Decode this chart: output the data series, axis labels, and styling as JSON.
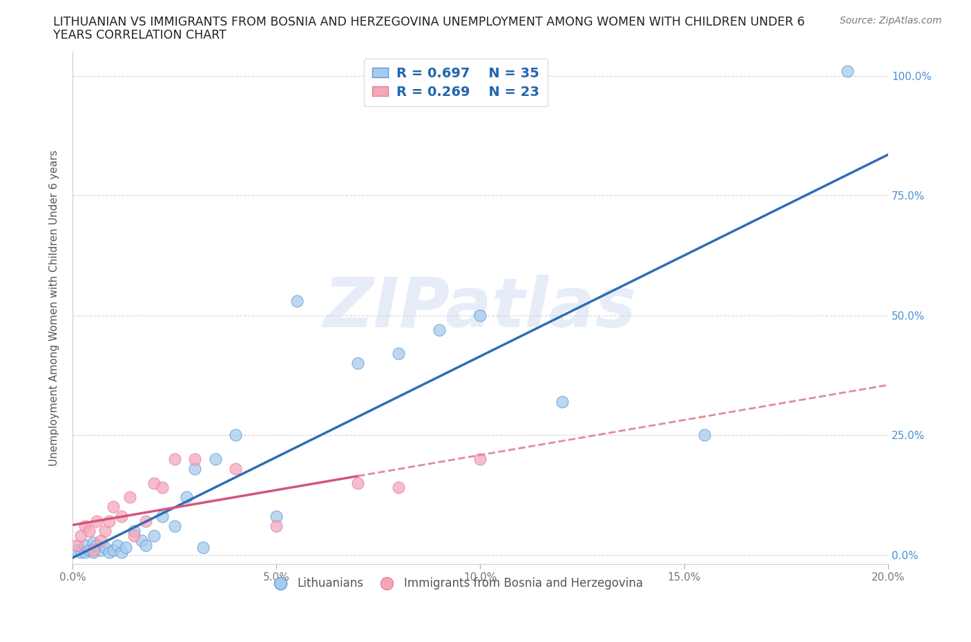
{
  "title_line1": "LITHUANIAN VS IMMIGRANTS FROM BOSNIA AND HERZEGOVINA UNEMPLOYMENT AMONG WOMEN WITH CHILDREN UNDER 6",
  "title_line2": "YEARS CORRELATION CHART",
  "source": "Source: ZipAtlas.com",
  "ylabel": "Unemployment Among Women with Children Under 6 years",
  "xlim": [
    0.0,
    0.2
  ],
  "ylim": [
    -0.02,
    1.05
  ],
  "xticks": [
    0.0,
    0.05,
    0.1,
    0.15,
    0.2
  ],
  "xticklabels": [
    "0.0%",
    "5.0%",
    "10.0%",
    "15.0%",
    "20.0%"
  ],
  "yticks": [
    0.0,
    0.25,
    0.5,
    0.75,
    1.0
  ],
  "yticklabels_right": [
    "0.0%",
    "25.0%",
    "50.0%",
    "75.0%",
    "100.0%"
  ],
  "blue_color": "#a8caed",
  "blue_edge_color": "#5b9bd5",
  "pink_color": "#f4a7b9",
  "pink_edge_color": "#e87ca0",
  "blue_line_color": "#2f6db5",
  "pink_line_solid_color": "#d4547a",
  "pink_line_dash_color": "#e08aa0",
  "legend_R_blue": "R = 0.697",
  "legend_N_blue": "N = 35",
  "legend_R_pink": "R = 0.269",
  "legend_N_pink": "N = 23",
  "legend_label_blue": "Lithuanians",
  "legend_label_pink": "Immigrants from Bosnia and Herzegovina",
  "watermark": "ZIPatlas",
  "blue_scatter_x": [
    0.001,
    0.002,
    0.003,
    0.003,
    0.004,
    0.005,
    0.005,
    0.006,
    0.007,
    0.008,
    0.009,
    0.01,
    0.011,
    0.012,
    0.013,
    0.015,
    0.017,
    0.018,
    0.02,
    0.022,
    0.025,
    0.028,
    0.03,
    0.032,
    0.035,
    0.04,
    0.05,
    0.055,
    0.07,
    0.08,
    0.09,
    0.1,
    0.12,
    0.155,
    0.19
  ],
  "blue_scatter_y": [
    0.01,
    0.005,
    0.005,
    0.02,
    0.01,
    0.005,
    0.025,
    0.02,
    0.01,
    0.015,
    0.005,
    0.01,
    0.02,
    0.005,
    0.015,
    0.05,
    0.03,
    0.02,
    0.04,
    0.08,
    0.06,
    0.12,
    0.18,
    0.015,
    0.2,
    0.25,
    0.08,
    0.53,
    0.4,
    0.42,
    0.47,
    0.5,
    0.32,
    0.25,
    1.01
  ],
  "pink_scatter_x": [
    0.001,
    0.002,
    0.003,
    0.004,
    0.005,
    0.006,
    0.007,
    0.008,
    0.009,
    0.01,
    0.012,
    0.014,
    0.015,
    0.018,
    0.02,
    0.022,
    0.025,
    0.03,
    0.04,
    0.05,
    0.07,
    0.08,
    0.1
  ],
  "pink_scatter_y": [
    0.02,
    0.04,
    0.06,
    0.05,
    0.01,
    0.07,
    0.03,
    0.05,
    0.07,
    0.1,
    0.08,
    0.12,
    0.04,
    0.07,
    0.15,
    0.14,
    0.2,
    0.2,
    0.18,
    0.06,
    0.15,
    0.14,
    0.2
  ],
  "pink_solid_xend": 0.07,
  "background_color": "#ffffff",
  "grid_color": "#cccccc",
  "right_axis_color": "#4a90d9"
}
